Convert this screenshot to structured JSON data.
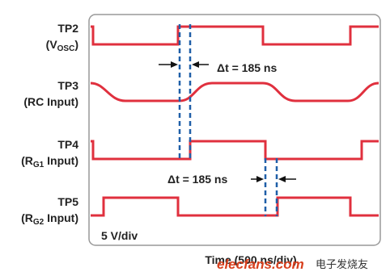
{
  "signals": [
    {
      "name": "TP2",
      "prefix": "(V",
      "sub": "OSC",
      "suffix": ")"
    },
    {
      "name": "TP3",
      "prefix": "(RC Input)"
    },
    {
      "name": "TP4",
      "prefix": "(R",
      "sub": "G1",
      "suffix": " Input)"
    },
    {
      "name": "TP5",
      "prefix": "(R",
      "sub": "G2",
      "suffix": " Input)"
    }
  ],
  "delays": [
    "Δt = 185 ns",
    "Δt = 185 ns"
  ],
  "scale": "5 V/div",
  "x_label": "Time (500 ns/div)",
  "watermark": {
    "site": "elecfans.com",
    "brand": "电子发烧友"
  }
}
